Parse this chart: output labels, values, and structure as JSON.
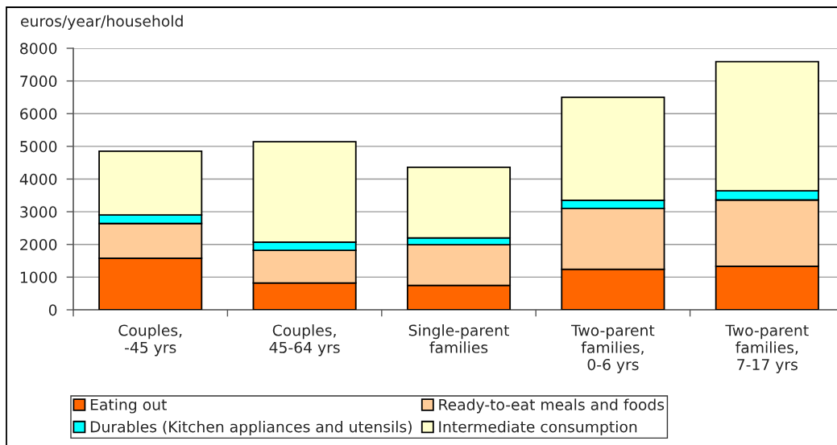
{
  "chart_data": {
    "type": "bar",
    "stacked": true,
    "ylabel": "euros/year/household",
    "categories": [
      "Couples,\n-45 yrs",
      "Couples,\n45-64 yrs",
      "Single-parent\nfamilies",
      "Two-parent\nfamilies,\n0-6 yrs",
      "Two-parent\nfamilies,\n7-17 yrs"
    ],
    "series": [
      {
        "name": "Eating out",
        "color": "#ff6600",
        "values": [
          1580,
          820,
          750,
          1240,
          1330
        ]
      },
      {
        "name": "Ready-to-eat meals and foods",
        "color": "#ffcc99",
        "values": [
          1060,
          1000,
          1240,
          1860,
          2030
        ]
      },
      {
        "name": "Durables (Kitchen appliances and utensils)",
        "color": "#00ffff",
        "values": [
          260,
          250,
          210,
          250,
          280
        ]
      },
      {
        "name": "Intermediate consumption",
        "color": "#ffffcc",
        "values": [
          1950,
          3070,
          2160,
          3150,
          3950
        ]
      }
    ],
    "ylim": [
      0,
      8000
    ],
    "yticks": [
      0,
      1000,
      2000,
      3000,
      4000,
      5000,
      6000,
      7000,
      8000
    ],
    "grid": "y",
    "legend": "bottom"
  }
}
